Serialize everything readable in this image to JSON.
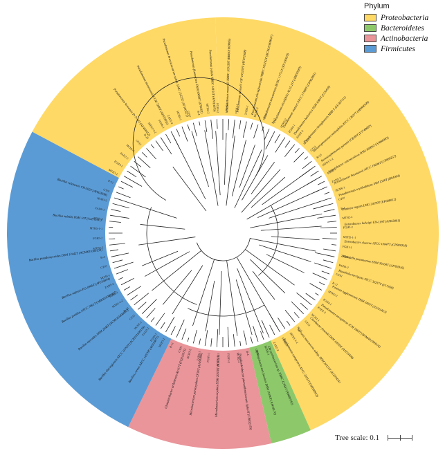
{
  "legend": {
    "title": "Phylum",
    "items": [
      {
        "label": "Proteobacteria",
        "color": "#FFD966"
      },
      {
        "label": "Bacteroidetes",
        "color": "#8DC96A"
      },
      {
        "label": "Actinobacteria",
        "color": "#E9959A"
      },
      {
        "label": "Firmicutes",
        "color": "#5B9BD5"
      }
    ]
  },
  "scale": {
    "label": "Tree scale: 0.1"
  },
  "clades": [
    {
      "phylum": "Proteobacteria",
      "color": "#FFD966",
      "start": 298,
      "end": 358
    },
    {
      "phylum": "Proteobacteria",
      "color": "#FFD966",
      "start": -2,
      "end": 156
    },
    {
      "phylum": "Bacteroidetes",
      "color": "#8DC96A",
      "start": 156,
      "end": 167
    },
    {
      "phylum": "Actinobacteria",
      "color": "#E9959A",
      "start": 167,
      "end": 206
    },
    {
      "phylum": "Firmicutes",
      "color": "#5B9BD5",
      "start": 206,
      "end": 298
    }
  ],
  "leaves": [
    {
      "label": "Pseudomonas koreensis Ps 9-14T (AF468452)",
      "angle": 323
    },
    {
      "label": "Pseudomonas moraviensis CCM 7280T (AY970952)",
      "angle": 333
    },
    {
      "label": "Pseudomonas brassicacearum subsp. LMG 21623T (AF100321)",
      "angle": 343
    },
    {
      "label": "Pseudomonas fluorescens DSM 50090T (Z76662)",
      "angle": 350
    },
    {
      "label": "Pseudomonas putida NBRC 14164T (AP013070)",
      "angle": 356
    },
    {
      "label": "Pseudomonas monteilii NBRC 103158T (BBIS01000005)",
      "angle": 2
    },
    {
      "label": "Pseudomonas mosselii CIP 105259T (AF072688)",
      "angle": 7
    },
    {
      "label": "Pseudomonas plecoglossicida NBRC 103162T (BCXL01000047)",
      "angle": 14
    },
    {
      "label": "Pseudomonas taiwanensis BCRC 17751T (EU103629)",
      "angle": 20
    },
    {
      "label": "Pseudomonas alcaliphila AL15-21T (AB030583)",
      "angle": 25
    },
    {
      "label": "Pseudomonas stutzeri ATCC 17588T (CP002881)",
      "angle": 30
    },
    {
      "label": "Pseudomonas balearica DSM 6083T (U26418)",
      "angle": 36
    },
    {
      "label": "Pseudomonas chengduensis MBR T (EU307111)",
      "angle": 42
    },
    {
      "label": "Stenotrophomonas maltophilia ATCC 13637T (AB008509)",
      "angle": 48
    },
    {
      "label": "Stenotrophomonas pavanii ICB 89T (FJ748683)",
      "angle": 54
    },
    {
      "label": "Acinetobacter calcoaceticus DSM 30006T (AJ888983)",
      "angle": 60
    },
    {
      "label": "Acinetobacter baumannii ATCC 19606T (CP009257)",
      "angle": 66
    },
    {
      "label": "Pseudomonas oryzihabitans IAM 1568T (D84004)",
      "angle": 72
    },
    {
      "label": "Pantoea vagans LMG 24199T (EF688012)",
      "angle": 79
    },
    {
      "label": "Enterobacter ludwigii EN-119T (AJ853891)",
      "angle": 86
    },
    {
      "label": "Enterobacter cloacae ATCC 13047T (CP001918)",
      "angle": 94
    },
    {
      "label": "Klebsiella pneumoniae DSM 30104T (AJ783916)",
      "angle": 101
    },
    {
      "label": "Raoultella terrigena ATCC 33257T (Y17658)",
      "angle": 108
    },
    {
      "label": "Pantoea agglomerans DSM 3493T (AJ233423)",
      "angle": 116
    },
    {
      "label": "Pseudomonas aeruginosa JCM 5962T (BAMA01000316)",
      "angle": 126
    },
    {
      "label": "Citrobacter freundii DSM 30039T (AJ233408)",
      "angle": 134
    },
    {
      "label": "Serratia marcescens subsp. DSM 30121T (AJ233431)",
      "angle": 142
    },
    {
      "label": "Xanthomonas campestris ATCC 33913T (AE008922)",
      "angle": 150
    },
    {
      "label": "Chryseobacterium sp. NBRC 12456T (AB681042)",
      "angle": 158
    },
    {
      "label": "Sphingobacterium faecium DSM 11690T (AJ438176)",
      "angle": 164
    },
    {
      "label": "Pseudarthrobacter phenanthrenivorans Sphe3T (CP002379)",
      "angle": 172
    },
    {
      "label": "Microbacterium oxydans DSM 20578T (Y17227)",
      "angle": 182
    },
    {
      "label": "Microbacterium paraoxydans CF36T (AJ491806)",
      "angle": 190
    },
    {
      "label": "Glutamicibacter arilaitensis Re117T (FQ311875)",
      "angle": 198
    },
    {
      "label": "Bacillus cereus ATCC 14579T (AE016877)",
      "angle": 212
    },
    {
      "label": "Bacillus thuringiensis ATCC 10792T (ACNF01000156)",
      "angle": 220
    },
    {
      "label": "Bacillus mycoides DSM 2048T (ACMU01000002)",
      "angle": 231
    },
    {
      "label": "Bacillus pumilus ATCC 7061T (ABRX01000007)",
      "angle": 241
    },
    {
      "label": "Bacillus safensis FO-036bT (AF234854)",
      "angle": 248
    },
    {
      "label": "Bacillus pseudomycoides DSM 12442T (ACMX01000133)",
      "angle": 262
    },
    {
      "label": "Bacillus subtilis DSM 10T (AJ276351)",
      "angle": 276
    },
    {
      "label": "Bacillus velezensis CR-502T (AY603658)",
      "angle": 288
    }
  ],
  "short_labels": [
    "MTH5-1-1",
    "FGH1-1",
    "ZAD6-1",
    "HCH3-2",
    "GT01",
    "R-11",
    "MTH3-2",
    "FGH4-1",
    "ZAD2-2",
    "HCH1-1",
    "GT12",
    "R-23",
    "MTH1-1-2",
    "FGH6-1",
    "ZAD5-2",
    "HCH6-1",
    "GT07",
    "R-4",
    "MTH2-2",
    "FGH3-2"
  ]
}
